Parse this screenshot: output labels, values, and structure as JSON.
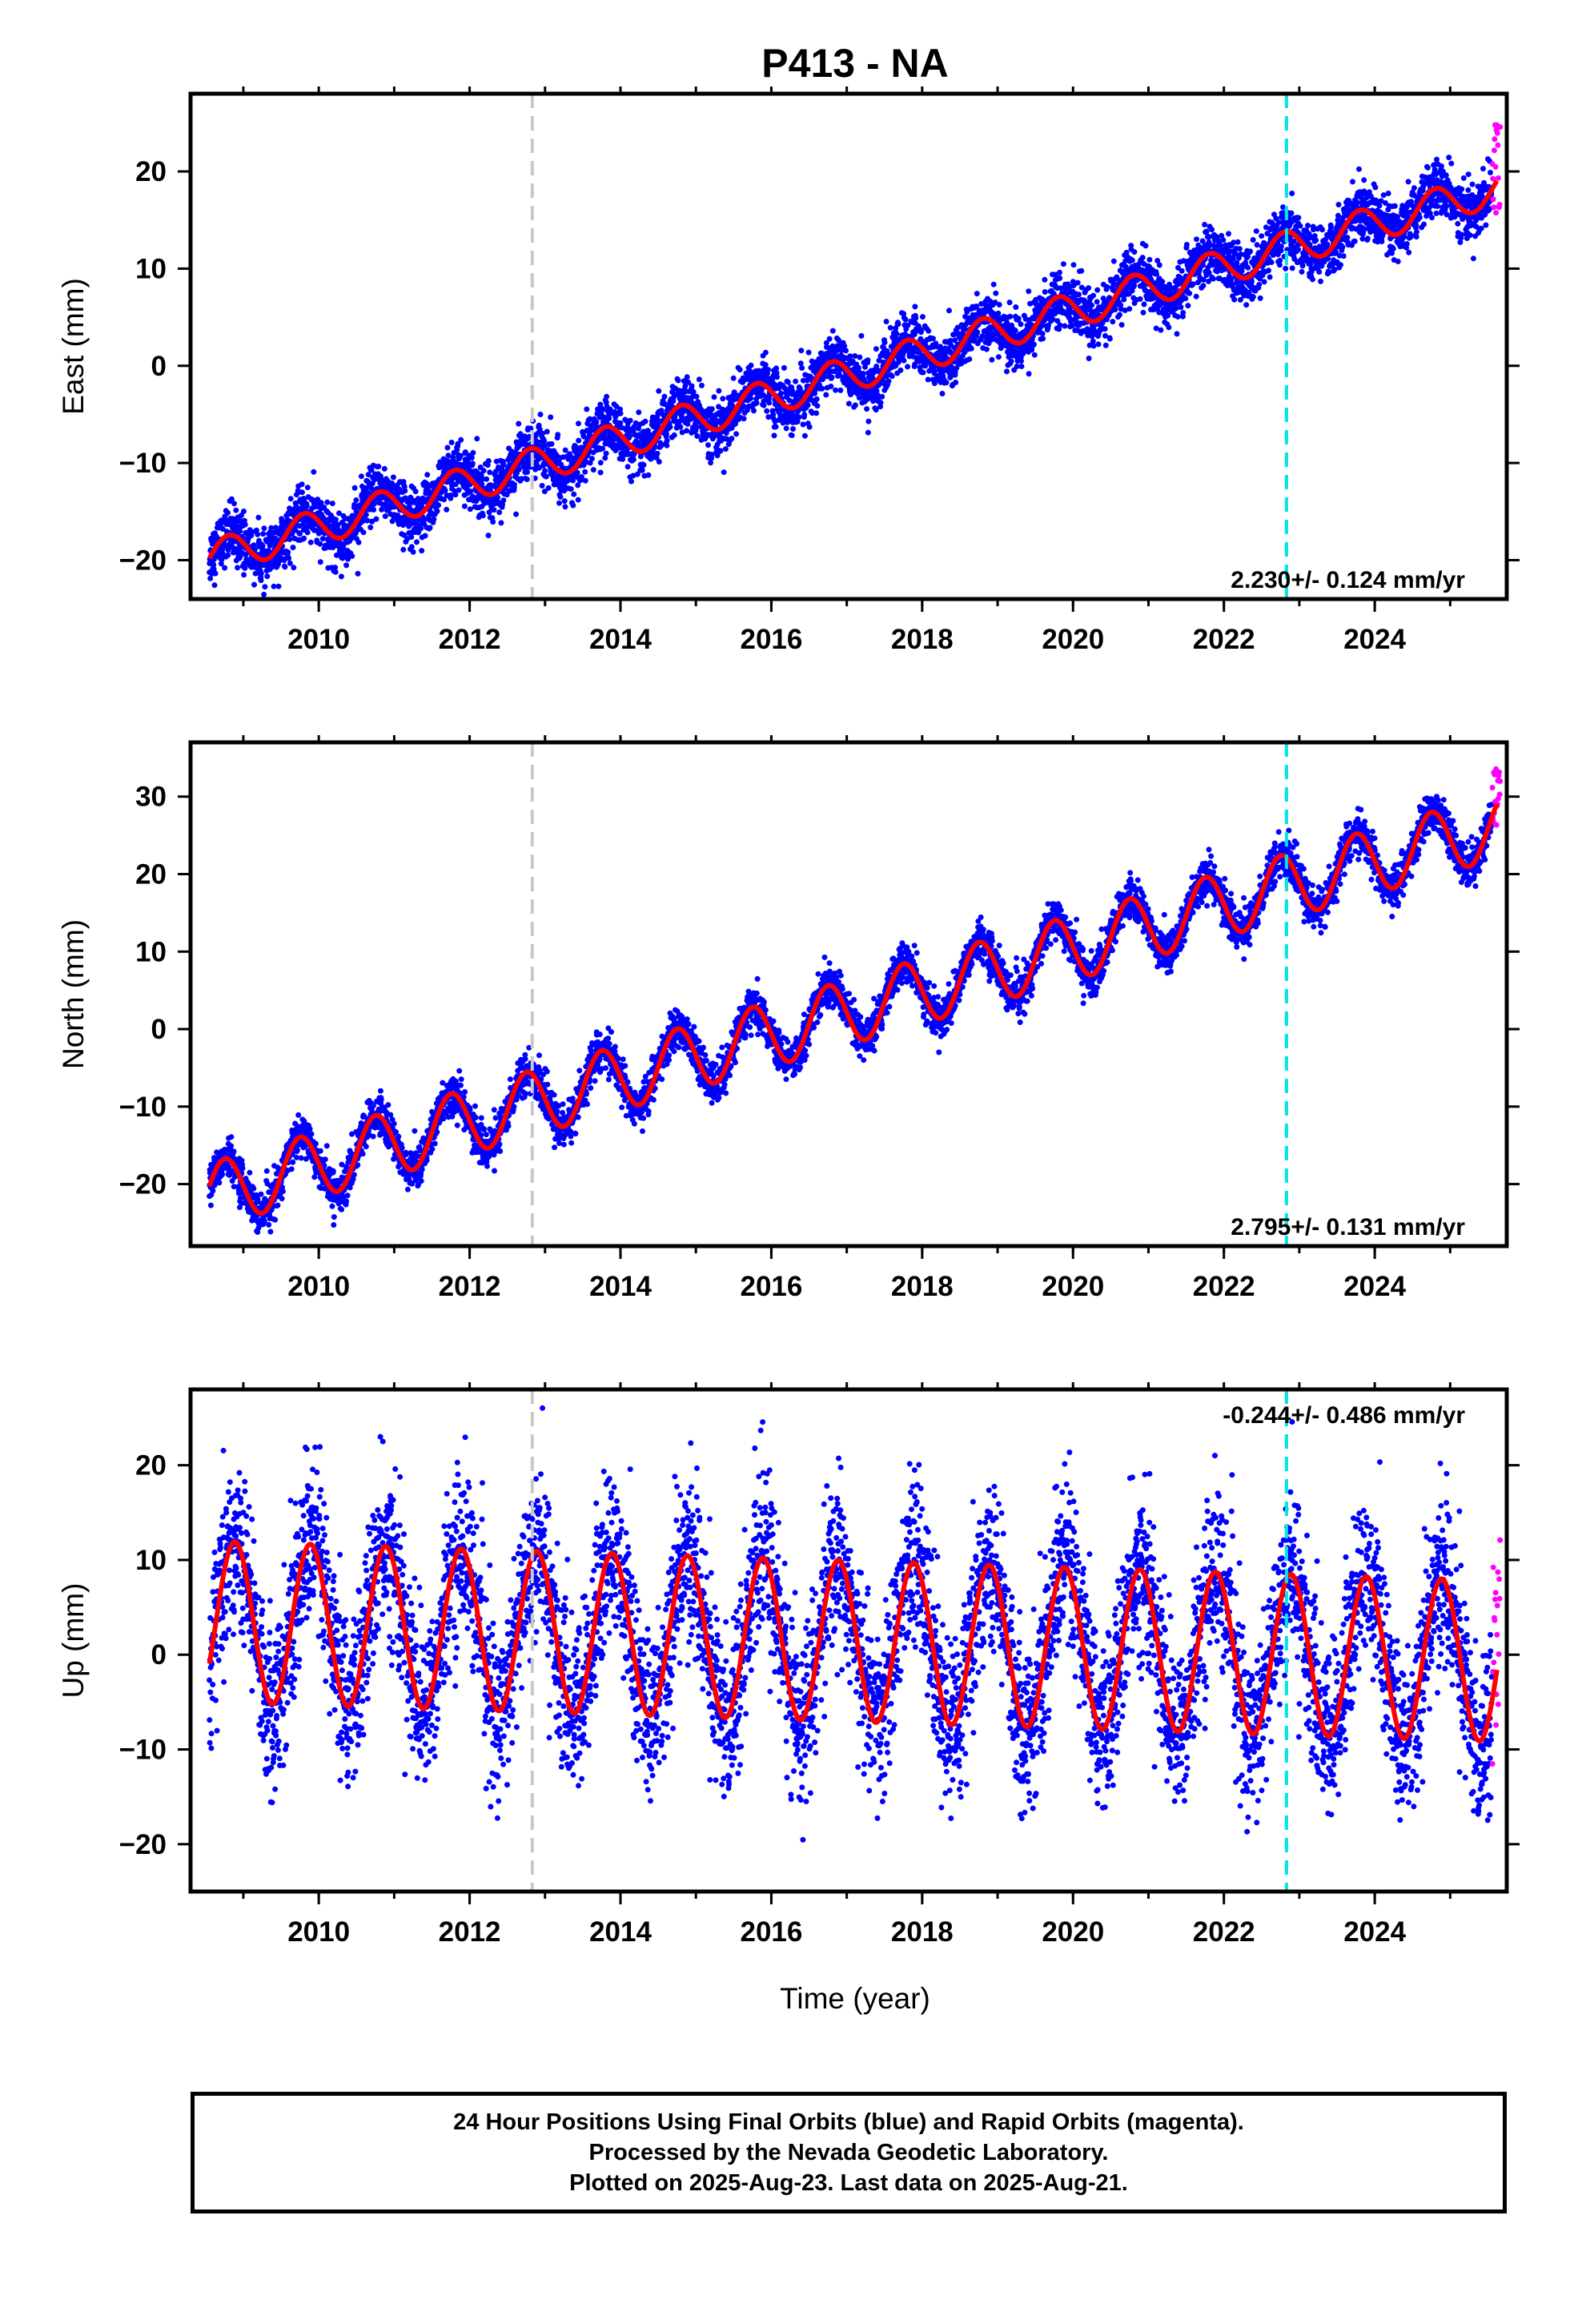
{
  "title": "P413 - NA",
  "xlabel": "Time (year)",
  "colors": {
    "final": "#0000ff",
    "rapid": "#ff00ff",
    "model": "#ff0000",
    "equip_change": "#c8c8c8",
    "eq_offset": "#00e5e5"
  },
  "markers": {
    "gray_dashed": 2012.83,
    "cyan_dashed": 2022.83
  },
  "footer": [
    "24 Hour Positions Using Final Orbits (blue) and Rapid Orbits (magenta).",
    "Processed by the Nevada Geodetic Laboratory.",
    "Plotted on 2025-Aug-23. Last data on 2025-Aug-21."
  ],
  "chart_data": [
    {
      "type": "scatter",
      "ylabel": "East (mm)",
      "rate_label": "2.230+/- 0.124 mm/yr",
      "rate_pos": "bottom-right",
      "xlim": [
        2008.3,
        2025.75
      ],
      "ylim": [
        -24,
        28
      ],
      "xticks": [
        2010,
        2012,
        2014,
        2016,
        2018,
        2020,
        2022,
        2024
      ],
      "yticks": [
        -20,
        -10,
        0,
        10,
        20
      ],
      "model": {
        "t0": 2008.55,
        "y0": -19.8,
        "rate": 2.23,
        "amp": 1.8,
        "phase": 0.0,
        "noise": 1.4
      },
      "tick_labels": {
        "x": [
          "2010",
          "2012",
          "2014",
          "2016",
          "2018",
          "2020",
          "2022",
          "2024"
        ],
        "y": [
          "−20",
          "−10",
          "0",
          "10",
          "20"
        ]
      }
    },
    {
      "type": "scatter",
      "ylabel": "North (mm)",
      "rate_label": "2.795+/- 0.131 mm/yr",
      "rate_pos": "bottom-right",
      "xlim": [
        2008.3,
        2025.75
      ],
      "ylim": [
        -28,
        37
      ],
      "xticks": [
        2010,
        2012,
        2014,
        2016,
        2018,
        2020,
        2022,
        2024
      ],
      "yticks": [
        -20,
        -10,
        0,
        10,
        20,
        30
      ],
      "model": {
        "t0": 2008.55,
        "y0": -21.5,
        "rate": 2.795,
        "amp": 4.2,
        "phase": 0.3,
        "noise": 1.3
      },
      "tick_labels": {
        "x": [
          "2010",
          "2012",
          "2014",
          "2016",
          "2018",
          "2020",
          "2022",
          "2024"
        ],
        "y": [
          "−20",
          "−10",
          "0",
          "10",
          "20",
          "30"
        ]
      }
    },
    {
      "type": "scatter",
      "ylabel": "Up (mm)",
      "rate_label": "-0.244+/- 0.486 mm/yr",
      "rate_pos": "top-right",
      "xlim": [
        2008.3,
        2025.75
      ],
      "ylim": [
        -25,
        28
      ],
      "xticks": [
        2010,
        2012,
        2014,
        2016,
        2018,
        2020,
        2022,
        2024
      ],
      "yticks": [
        -20,
        -10,
        0,
        10,
        20
      ],
      "model": {
        "t0": 2008.55,
        "y0": 3.5,
        "rate": -0.244,
        "amp": 8.5,
        "phase": -0.55,
        "noise": 4.5
      },
      "tick_labels": {
        "x": [
          "2010",
          "2012",
          "2014",
          "2016",
          "2018",
          "2020",
          "2022",
          "2024"
        ],
        "y": [
          "−20",
          "−10",
          "0",
          "10",
          "20"
        ]
      }
    }
  ]
}
